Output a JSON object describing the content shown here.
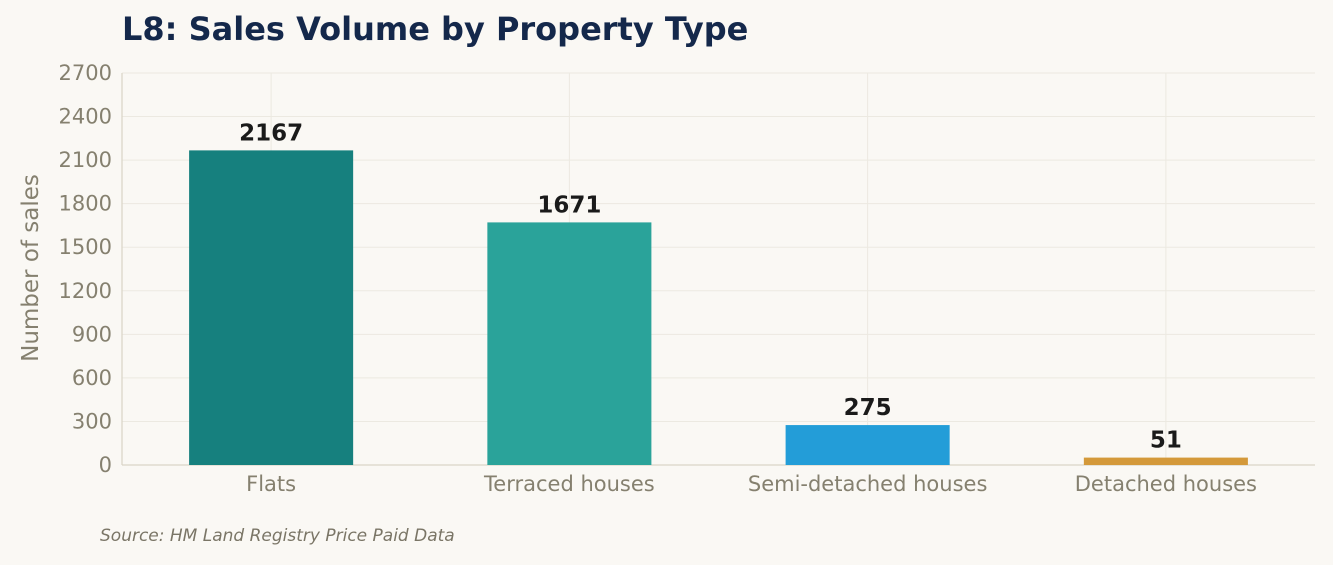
{
  "title": "L8: Sales Volume by Property Type",
  "source": "Source: HM Land Registry Price Paid Data",
  "chart_data": {
    "type": "bar",
    "title": "L8: Sales Volume by Property Type",
    "xlabel": "",
    "ylabel": "Number of sales",
    "ylim": [
      0,
      2700
    ],
    "yticks": [
      0,
      300,
      600,
      900,
      1200,
      1500,
      1800,
      2100,
      2400,
      2700
    ],
    "categories": [
      "Flats",
      "Terraced houses",
      "Semi-detached houses",
      "Detached houses"
    ],
    "values": [
      2167,
      1671,
      275,
      51
    ],
    "colors": [
      "#16807e",
      "#2aa39a",
      "#239dd8",
      "#d4993a"
    ],
    "grid": true,
    "legend": "none"
  }
}
